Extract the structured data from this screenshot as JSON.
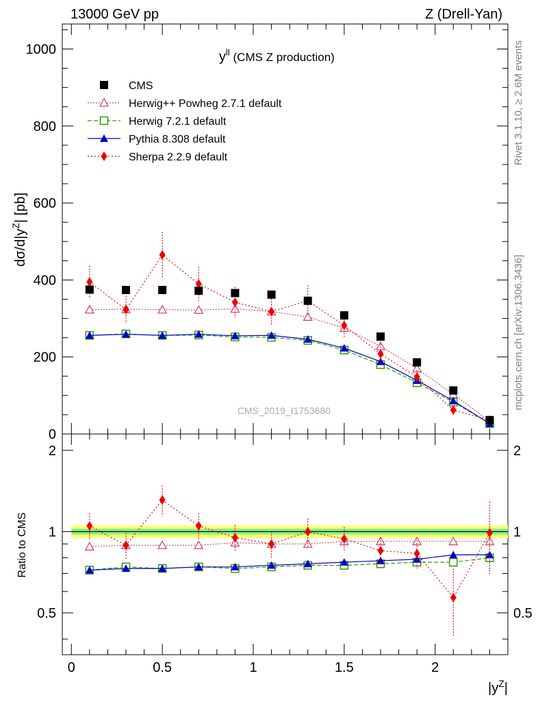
{
  "header": {
    "left": "13000 GeV pp",
    "right": "Z (Drell-Yan)"
  },
  "side": {
    "top": "Rivet 3.1.10, ≥ 2.6M events",
    "bottom": "mcplots.cern.ch [arXiv:1306.3436]"
  },
  "main_panel": {
    "title_main": "y",
    "title_sup": "ll",
    "title_rest": " (CMS Z production)",
    "ylabel": "dσ/d|y",
    "ylabel_sup": "Z",
    "ylabel_rest": "| [pb]",
    "watermark": "CMS_2019_I1753680"
  },
  "ratio_panel": {
    "ylabel": "Ratio to CMS"
  },
  "xaxis": {
    "label": "|y",
    "label_sup": "Z",
    "label_end": "|"
  },
  "legend": [
    {
      "label": "CMS"
    },
    {
      "label": "Herwig++ Powheg 2.7.1 default"
    },
    {
      "label": "Herwig 7.2.1 default"
    },
    {
      "label": "Pythia 8.308 default"
    },
    {
      "label": "Sherpa 2.2.9 default"
    }
  ],
  "colors": {
    "cms": "#000000",
    "herwigpp": "#d6477a",
    "herwig7": "#339900",
    "pythia": "#0000cc",
    "sherpa": "#ee0000",
    "band_inner": "#88ee88",
    "band_outer": "#ffff77"
  },
  "chart_data": [
    {
      "type": "line",
      "panel": "main",
      "x": [
        0.1,
        0.3,
        0.5,
        0.7,
        0.9,
        1.1,
        1.3,
        1.5,
        1.7,
        1.9,
        2.1,
        2.3
      ],
      "xlim": [
        -0.05,
        2.4
      ],
      "ylim": [
        0,
        1065
      ],
      "yticks": [
        0,
        200,
        400,
        600,
        800,
        1000
      ],
      "xticks": [
        0,
        0.5,
        1,
        1.5,
        2
      ],
      "xtick_labels": [
        "0",
        "0.5",
        "1",
        "1.5",
        "2"
      ],
      "series": [
        {
          "name": "CMS",
          "values": [
            375,
            374,
            374,
            372,
            366,
            362,
            346,
            308,
            253,
            186,
            113,
            36
          ]
        },
        {
          "name": "Herwig++ Powheg 2.7.1 default",
          "values": [
            323,
            324,
            323,
            322,
            325,
            318,
            304,
            275,
            228,
            170,
            103,
            33
          ]
        },
        {
          "name": "Herwig 7.2.1 default",
          "values": [
            256,
            260,
            256,
            257,
            252,
            251,
            243,
            218,
            180,
            133,
            83,
            27
          ]
        },
        {
          "name": "Pythia 8.308 default",
          "values": [
            256,
            259,
            256,
            259,
            255,
            256,
            246,
            223,
            188,
            139,
            86,
            27
          ]
        },
        {
          "name": "Sherpa 2.2.9 default",
          "values": [
            395,
            323,
            465,
            390,
            342,
            318,
            346,
            282,
            208,
            148,
            62,
            36
          ],
          "errors": [
            42,
            36,
            60,
            44,
            40,
            34,
            40,
            30,
            26,
            18,
            12,
            6
          ]
        }
      ]
    },
    {
      "type": "line",
      "panel": "ratio",
      "x": [
        0.1,
        0.3,
        0.5,
        0.7,
        0.9,
        1.1,
        1.3,
        1.5,
        1.7,
        1.9,
        2.1,
        2.3
      ],
      "ylim": [
        0.35,
        2.3
      ],
      "yticks": [
        0.5,
        1,
        2
      ],
      "ytick_labels": [
        "0.5",
        "1",
        "2"
      ],
      "band": {
        "inner": 0.025,
        "outer": 0.055
      },
      "series": [
        {
          "name": "Herwig++ Powheg 2.7.1 default",
          "values": [
            0.88,
            0.89,
            0.89,
            0.89,
            0.91,
            0.9,
            0.9,
            0.92,
            0.92,
            0.92,
            0.92,
            0.92
          ]
        },
        {
          "name": "Herwig 7.2.1 default",
          "values": [
            0.72,
            0.74,
            0.73,
            0.74,
            0.73,
            0.74,
            0.75,
            0.75,
            0.76,
            0.77,
            0.77,
            0.8
          ]
        },
        {
          "name": "Pythia 8.308 default",
          "values": [
            0.72,
            0.73,
            0.73,
            0.74,
            0.74,
            0.75,
            0.76,
            0.77,
            0.78,
            0.79,
            0.82,
            0.82
          ]
        },
        {
          "name": "Sherpa 2.2.9 default",
          "values": [
            1.05,
            0.89,
            1.31,
            1.05,
            0.95,
            0.9,
            1.0,
            0.94,
            0.85,
            0.83,
            0.57,
            0.99
          ],
          "errors": [
            0.12,
            0.1,
            0.17,
            0.12,
            0.11,
            0.1,
            0.12,
            0.1,
            0.1,
            0.1,
            0.16,
            0.3
          ]
        }
      ]
    }
  ]
}
